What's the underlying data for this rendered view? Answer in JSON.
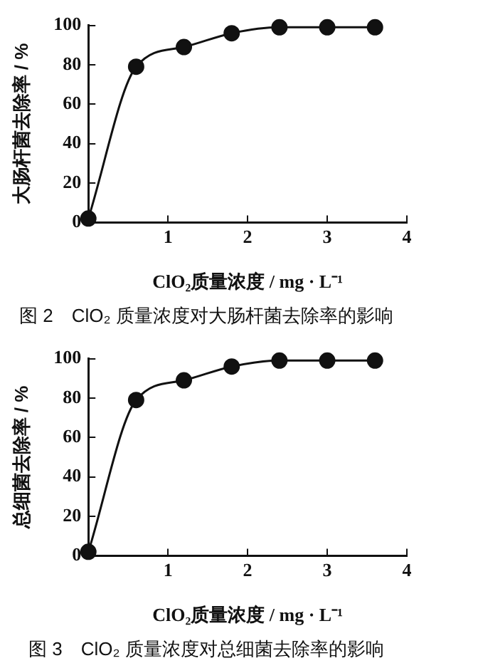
{
  "chart_data": [
    {
      "type": "line",
      "title": "图 2　ClO₂ 质量浓度对大肠杆菌去除率的影响",
      "xlabel": "ClO₂质量浓度 / mg · L⁻¹",
      "ylabel": "大肠杆菌去除率 / %",
      "x": [
        0,
        0.6,
        1.2,
        1.8,
        2.4,
        3.0,
        3.6
      ],
      "series": [
        {
          "color": "#111111",
          "values": [
            2,
            79,
            89,
            96,
            99,
            99,
            99
          ]
        }
      ],
      "xlim": [
        0,
        4
      ],
      "xticks": [
        {
          "value": 0,
          "label": null
        },
        1,
        2,
        3,
        4
      ],
      "ylim": [
        0,
        100
      ],
      "yticks": [
        0,
        20,
        40,
        60,
        80,
        100
      ],
      "grid": false,
      "legend": false,
      "marker": "circle",
      "line_style": "solid"
    },
    {
      "type": "line",
      "title": "图 3　ClO₂ 质量浓度对总细菌去除率的影响",
      "xlabel": "ClO₂质量浓度 / mg · L⁻¹",
      "ylabel": "总细菌去除率 / %",
      "x": [
        0,
        0.6,
        1.2,
        1.8,
        2.4,
        3.0,
        3.6
      ],
      "series": [
        {
          "color": "#111111",
          "values": [
            2,
            79,
            89,
            96,
            99,
            99,
            99
          ]
        }
      ],
      "xlim": [
        0,
        4
      ],
      "xticks": [
        {
          "value": 0,
          "label": null
        },
        1,
        2,
        3,
        4
      ],
      "ylim": [
        0,
        100
      ],
      "yticks": [
        0,
        20,
        40,
        60,
        80,
        100
      ],
      "grid": false,
      "legend": false,
      "marker": "circle",
      "line_style": "solid"
    }
  ]
}
